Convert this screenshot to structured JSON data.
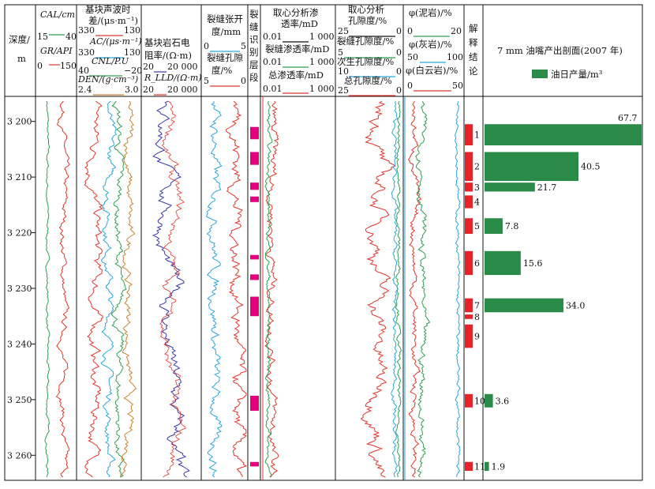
{
  "header": {
    "depth": [
      "深度/",
      "m"
    ],
    "t1": [
      {
        "name": "CAL/cm",
        "min": "15",
        "max": "40",
        "color": "#2e9e52"
      },
      {
        "name": "GR/API",
        "min": "0",
        "max": "150",
        "color": "#e0352d"
      }
    ],
    "t2": {
      "title": [
        "基块声波时",
        "差/(μs·m⁻¹)"
      ],
      "curves": [
        {
          "name": "",
          "min": "330",
          "max": "130",
          "color": "#e0352d"
        },
        {
          "name": "AC/(μs·m⁻¹)",
          "min": "330",
          "max": "130",
          "color": "#2aa6d9"
        },
        {
          "name": "CNL/P.U",
          "min": "40",
          "max": "−20",
          "color": "#2e9e52"
        },
        {
          "name": "DEN/(g·cm⁻³)",
          "min": "2.4",
          "max": "3.0",
          "color": "#c9822e"
        }
      ]
    },
    "t3": {
      "title": [
        "基块岩石电",
        "阻率/(Ω·m)"
      ],
      "curves": [
        {
          "name": "",
          "min": "20",
          "max": "20 000",
          "color": "#3a37a8"
        },
        {
          "name": "R_LLD/(Ω·m)",
          "min": "20",
          "max": "20 000",
          "color": "#e0352d"
        }
      ]
    },
    "t4": {
      "title": [
        "裂缝张开",
        "度/mm"
      ],
      "min1": "0",
      "max1": "5",
      "color1": "#2aa6d9",
      "title2": [
        "裂缝孔隙",
        "度/%"
      ],
      "min2": "5",
      "max2": "0",
      "color2": "#e0352d"
    },
    "t5": {
      "title": [
        "裂",
        "缝",
        "识",
        "别",
        "层",
        "段"
      ]
    },
    "t6": {
      "title": [
        "取心分析渗",
        "透率/mD"
      ],
      "c1": {
        "min": "0.01",
        "max": "1 000",
        "color": "#111"
      },
      "c2name": "裂缝渗透率/mD",
      "c2": {
        "min": "0.01",
        "max": "1 000",
        "color": "#2e9e52"
      },
      "c3name": "总渗透率/mD",
      "c3": {
        "min": "0.01",
        "max": "1 000",
        "color": "#e0352d"
      }
    },
    "t7": {
      "title": [
        "取心分析",
        "孔隙度/%"
      ],
      "c1": {
        "min": "25",
        "max": "0",
        "color": "#111"
      },
      "c2name": "裂缝孔隙度/%",
      "c2": {
        "min": "5",
        "max": "0",
        "color": "#2e9e52"
      },
      "c3name": "次生孔隙度/%",
      "c3": {
        "min": "10",
        "max": "0",
        "color": "#2aa6d9"
      },
      "c4name": "总孔隙度/%",
      "c4": {
        "min": "25",
        "max": "0",
        "color": "#e0352d"
      }
    },
    "t8": {
      "c1name": "φ(泥岩)/%",
      "c1": {
        "min": "0",
        "max": "20",
        "color": "#2e9e52"
      },
      "c2name": "φ(灰岩)/%",
      "c2": {
        "min": "50",
        "max": "100",
        "color": "#2aa6d9"
      },
      "c3name": "φ(白云岩)/%",
      "c3": {
        "min": "0",
        "max": "50",
        "color": "#e0352d"
      }
    },
    "t9": {
      "title": [
        "解",
        "释",
        "结",
        "论"
      ]
    },
    "t10": {
      "title": "7 mm 油嘴产出剖面(2007 年)",
      "legend": "油日产量/m³",
      "legend_color": "#2a8a47"
    }
  },
  "chart_data": {
    "type": "bar",
    "depth_range": [
      3195.5,
      3264.5
    ],
    "depth_ticks": [
      {
        "depth": 3200,
        "label": "3 200"
      },
      {
        "depth": 3210,
        "label": "3 210"
      },
      {
        "depth": 3220,
        "label": "3 220"
      },
      {
        "depth": 3230,
        "label": "3 230"
      },
      {
        "depth": 3240,
        "label": "3 240"
      },
      {
        "depth": 3250,
        "label": "3 250"
      },
      {
        "depth": 3260,
        "label": "3 260"
      }
    ],
    "fracture_intervals": [
      [
        3201.0,
        3203.2
      ],
      [
        3205.5,
        3207.8
      ],
      [
        3211.0,
        3212.3
      ],
      [
        3213.5,
        3214.5
      ],
      [
        3224.0,
        3224.8
      ],
      [
        3227.5,
        3228.5
      ],
      [
        3231.5,
        3235.0
      ],
      [
        3249.3,
        3252.0
      ],
      [
        3261.2,
        3262.0
      ]
    ],
    "layers": [
      {
        "id": "1",
        "top": 3200.5,
        "bottom": 3204.3,
        "oil": 67.7,
        "label": "67.7"
      },
      {
        "id": "2",
        "top": 3205.5,
        "bottom": 3210.7,
        "oil": 40.5,
        "label": "40.5"
      },
      {
        "id": "3",
        "top": 3211.0,
        "bottom": 3212.6,
        "oil": 21.7,
        "label": "21.7"
      },
      {
        "id": "4",
        "top": 3213.3,
        "bottom": 3215.6,
        "oil": null,
        "label": ""
      },
      {
        "id": "5",
        "top": 3217.4,
        "bottom": 3220.2,
        "oil": 7.8,
        "label": "7.8"
      },
      {
        "id": "6",
        "top": 3223.3,
        "bottom": 3227.6,
        "oil": 15.6,
        "label": "15.6"
      },
      {
        "id": "7",
        "top": 3231.8,
        "bottom": 3234.3,
        "oil": 34.0,
        "label": "34.0"
      },
      {
        "id": "8",
        "top": 3234.7,
        "bottom": 3235.5,
        "oil": null,
        "label": ""
      },
      {
        "id": "9",
        "top": 3236.5,
        "bottom": 3240.7,
        "oil": null,
        "label": ""
      },
      {
        "id": "10",
        "top": 3249.0,
        "bottom": 3251.4,
        "oil": 3.6,
        "label": "3.6"
      },
      {
        "id": "11",
        "top": 3261.2,
        "bottom": 3262.8,
        "oil": 1.9,
        "label": "1.9"
      }
    ],
    "oil_axis_max": 67.7
  }
}
